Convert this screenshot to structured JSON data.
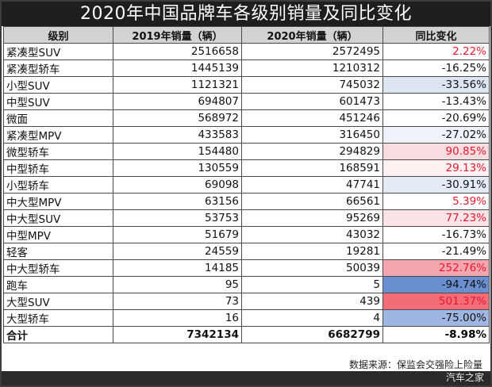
{
  "title": "2020年中国品牌车各级别销量及同比变化",
  "headers": [
    "级别",
    "2019年销量（辆）",
    "2020年销量（辆）",
    "同比变化"
  ],
  "rows": [
    {
      "level": "紧凑型SUV",
      "y2019": "2516658",
      "y2020": "2572495",
      "change": "2.22%",
      "cell_color": "#ffffff",
      "text_color": "#e8182f"
    },
    {
      "level": "紧凑型轿车",
      "y2019": "1445139",
      "y2020": "1210312",
      "change": "-16.25%",
      "cell_color": "#ffffff",
      "text_color": "#111111"
    },
    {
      "level": "小型SUV",
      "y2019": "1121321",
      "y2020": "745032",
      "change": "-33.56%",
      "cell_color": "#dde5f3",
      "text_color": "#111111"
    },
    {
      "level": "中型SUV",
      "y2019": "694807",
      "y2020": "601473",
      "change": "-13.43%",
      "cell_color": "#ffffff",
      "text_color": "#111111"
    },
    {
      "level": "微面",
      "y2019": "568972",
      "y2020": "451246",
      "change": "-20.69%",
      "cell_color": "#ffffff",
      "text_color": "#111111"
    },
    {
      "level": "紧凑型MPV",
      "y2019": "433583",
      "y2020": "316450",
      "change": "-27.02%",
      "cell_color": "#eef2f9",
      "text_color": "#111111"
    },
    {
      "level": "微型轿车",
      "y2019": "154480",
      "y2020": "294829",
      "change": "90.85%",
      "cell_color": "#f9dcdf",
      "text_color": "#e8182f"
    },
    {
      "level": "中型轿车",
      "y2019": "130559",
      "y2020": "168591",
      "change": "29.13%",
      "cell_color": "#fdf1f2",
      "text_color": "#e8182f"
    },
    {
      "level": "小型轿车",
      "y2019": "69098",
      "y2020": "47741",
      "change": "-30.91%",
      "cell_color": "#e5ebf6",
      "text_color": "#111111"
    },
    {
      "level": "中大型MPV",
      "y2019": "63156",
      "y2020": "66561",
      "change": "5.39%",
      "cell_color": "#ffffff",
      "text_color": "#e8182f"
    },
    {
      "level": "中大型SUV",
      "y2019": "53753",
      "y2020": "95269",
      "change": "77.23%",
      "cell_color": "#fbe3e6",
      "text_color": "#e8182f"
    },
    {
      "level": "中型MPV",
      "y2019": "51679",
      "y2020": "43032",
      "change": "-16.73%",
      "cell_color": "#ffffff",
      "text_color": "#111111"
    },
    {
      "level": "轻客",
      "y2019": "24559",
      "y2020": "19281",
      "change": "-21.49%",
      "cell_color": "#ffffff",
      "text_color": "#111111"
    },
    {
      "level": "中大型轿车",
      "y2019": "14185",
      "y2020": "50039",
      "change": "252.76%",
      "cell_color": "#f4a6ae",
      "text_color": "#e8182f"
    },
    {
      "level": "跑车",
      "y2019": "95",
      "y2020": "5",
      "change": "-94.74%",
      "cell_color": "#6a8fd0",
      "text_color": "#111111"
    },
    {
      "level": "大型SUV",
      "y2019": "73",
      "y2020": "439",
      "change": "501.37%",
      "cell_color": "#f26d78",
      "text_color": "#e8182f"
    },
    {
      "level": "大型轿车",
      "y2019": "16",
      "y2020": "4",
      "change": "-75.00%",
      "cell_color": "#9fb6e2",
      "text_color": "#111111"
    }
  ],
  "total": {
    "level": "合计",
    "y2019": "7342134",
    "y2020": "6682799",
    "change": "-8.98%"
  },
  "source": "数据来源：保监会交强险上险量",
  "watermark": "汽车之家"
}
